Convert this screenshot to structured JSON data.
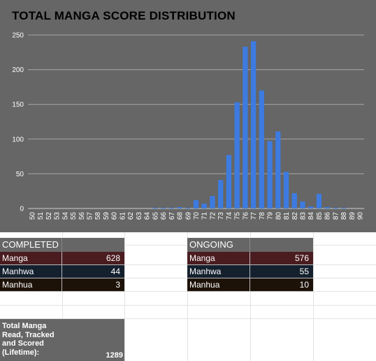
{
  "chart_data": {
    "type": "bar",
    "title": "TOTAL MANGA SCORE DISTRIBUTION",
    "categories": [
      "50",
      "51",
      "52",
      "53",
      "54",
      "55",
      "56",
      "57",
      "58",
      "59",
      "60",
      "61",
      "62",
      "63",
      "64",
      "65",
      "66",
      "67",
      "68",
      "69",
      "70",
      "71",
      "72",
      "73",
      "74",
      "75",
      "76",
      "77",
      "78",
      "79",
      "80",
      "81",
      "82",
      "83",
      "84",
      "85",
      "86",
      "87",
      "88",
      "89",
      "90"
    ],
    "values": [
      0,
      0,
      0,
      0,
      0,
      0,
      0,
      0,
      0,
      0,
      0,
      0,
      0,
      0,
      0,
      1,
      1,
      1,
      2,
      1,
      12,
      7,
      18,
      41,
      77,
      153,
      233,
      241,
      170,
      97,
      111,
      53,
      22,
      10,
      3,
      21,
      2,
      1,
      1,
      0,
      0
    ],
    "yticks": [
      "0",
      "50",
      "100",
      "150",
      "200",
      "250"
    ],
    "ylim": [
      0,
      250
    ],
    "grid": true,
    "colors": {
      "bar": "#3d7be0",
      "background": "#666666"
    }
  },
  "tables": {
    "completed": {
      "header": "COMPLETED",
      "rows": [
        {
          "label": "Manga",
          "value": "628"
        },
        {
          "label": "Manhwa",
          "value": "44"
        },
        {
          "label": "Manhua",
          "value": "3"
        }
      ]
    },
    "ongoing": {
      "header": "ONGOING",
      "rows": [
        {
          "label": "Manga",
          "value": "576"
        },
        {
          "label": "Manhwa",
          "value": "55"
        },
        {
          "label": "Manhua",
          "value": "10"
        }
      ]
    },
    "total": {
      "label": "Total Manga Read, Tracked and Scored (Lifetime):",
      "value": "1289"
    }
  }
}
